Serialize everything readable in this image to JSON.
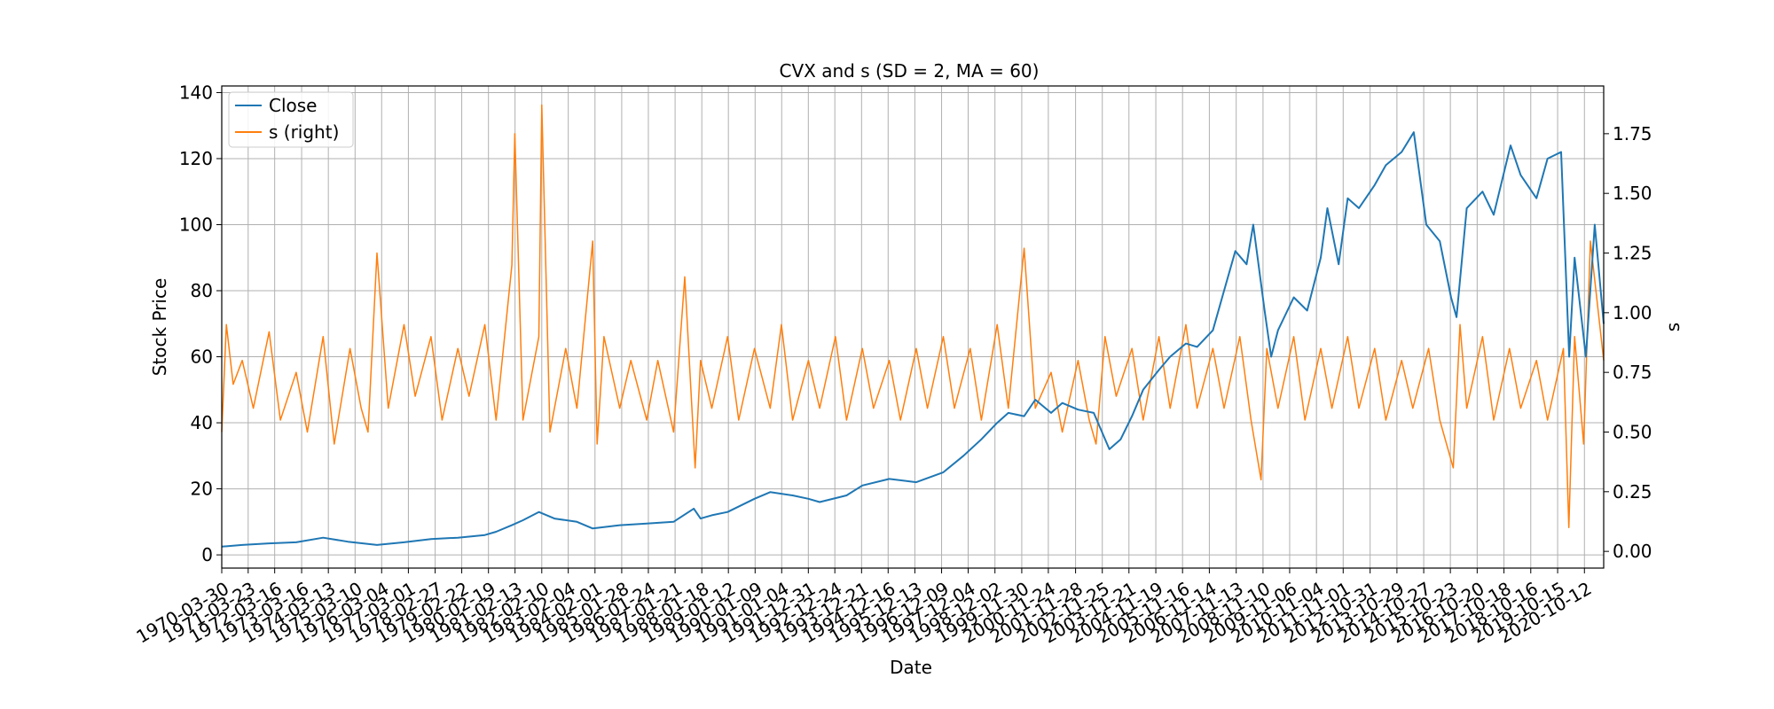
{
  "chart_data": {
    "type": "line",
    "title": "CVX and s (SD = 2, MA = 60)",
    "xlabel": "Date",
    "ylabel": "Stock Price",
    "ylabel_right": "s",
    "x_range": [
      "1970-03-30",
      "2021-06-30"
    ],
    "ylim": [
      -4,
      142
    ],
    "ylim_right": [
      -0.07,
      1.95
    ],
    "y_ticks": [
      "0",
      "20",
      "40",
      "60",
      "80",
      "100",
      "120",
      "140"
    ],
    "y_ticks_right": [
      "0.00",
      "0.25",
      "0.50",
      "0.75",
      "1.00",
      "1.25",
      "1.50",
      "1.75"
    ],
    "x_ticks": [
      "1970-03-30",
      "1971-03-23",
      "1972-03-16",
      "1973-03-16",
      "1974-03-13",
      "1975-03-10",
      "1976-03-04",
      "1977-03-01",
      "1978-02-27",
      "1979-02-22",
      "1980-02-19",
      "1981-02-13",
      "1982-02-10",
      "1983-02-04",
      "1984-02-01",
      "1985-01-28",
      "1986-01-24",
      "1987-01-21",
      "1988-01-18",
      "1989-01-12",
      "1990-01-09",
      "1991-01-04",
      "1991-12-31",
      "1992-12-24",
      "1993-12-21",
      "1994-12-16",
      "1995-12-13",
      "1996-12-09",
      "1997-12-04",
      "1998-12-02",
      "1999-11-30",
      "2000-11-24",
      "2001-11-28",
      "2002-11-25",
      "2003-11-21",
      "2004-11-19",
      "2005-11-16",
      "2006-11-14",
      "2007-11-13",
      "2008-11-10",
      "2009-11-06",
      "2010-11-04",
      "2011-11-01",
      "2012-10-31",
      "2013-10-29",
      "2014-10-27",
      "2015-10-23",
      "2016-10-20",
      "2017-10-18",
      "2018-10-16",
      "2019-10-15",
      "2020-10-12"
    ],
    "grid": true,
    "legend_position": "top-left",
    "legend": [
      "Close",
      "s (right)"
    ],
    "colors": {
      "close": "#1f77b4",
      "s": "#ff7f0e"
    },
    "series": [
      {
        "name": "Close",
        "axis": "left",
        "x": [
          "1970-03-30",
          "1971-01-01",
          "1972-01-01",
          "1973-01-01",
          "1974-01-01",
          "1974-12-01",
          "1976-01-01",
          "1977-01-01",
          "1978-01-01",
          "1979-01-01",
          "1980-01-01",
          "1980-06-01",
          "1981-01-01",
          "1981-06-01",
          "1982-01-01",
          "1982-08-01",
          "1983-06-01",
          "1984-01-01",
          "1985-01-01",
          "1986-01-01",
          "1987-01-01",
          "1987-10-01",
          "1988-01-01",
          "1988-06-01",
          "1989-01-01",
          "1990-01-01",
          "1990-08-01",
          "1991-06-01",
          "1992-01-01",
          "1992-06-01",
          "1993-06-01",
          "1994-01-01",
          "1995-01-01",
          "1996-01-01",
          "1997-01-01",
          "1997-10-01",
          "1998-06-01",
          "1999-01-01",
          "1999-06-01",
          "2000-01-01",
          "2000-06-01",
          "2001-01-01",
          "2001-06-01",
          "2002-01-01",
          "2002-08-01",
          "2003-03-01",
          "2003-08-01",
          "2004-01-01",
          "2004-06-01",
          "2005-01-01",
          "2005-06-01",
          "2006-01-01",
          "2006-06-01",
          "2007-01-01",
          "2007-06-01",
          "2007-11-01",
          "2008-04-01",
          "2008-07-01",
          "2008-12-01",
          "2009-03-01",
          "2009-06-01",
          "2010-01-01",
          "2010-07-01",
          "2011-01-01",
          "2011-04-01",
          "2011-09-01",
          "2012-01-01",
          "2012-06-01",
          "2013-01-01",
          "2013-06-01",
          "2014-01-01",
          "2014-06-15",
          "2014-12-01",
          "2015-06-01",
          "2015-11-01",
          "2016-01-15",
          "2016-06-01",
          "2017-01-01",
          "2017-06-01",
          "2018-01-15",
          "2018-06-01",
          "2019-01-01",
          "2019-06-01",
          "2019-12-01",
          "2020-03-20",
          "2020-06-01",
          "2020-11-01",
          "2021-03-01",
          "2021-06-30"
        ],
        "values": [
          2.5,
          3,
          3.5,
          3.8,
          5.2,
          4,
          3,
          3.8,
          4.8,
          5.2,
          6,
          7,
          9,
          10.5,
          13,
          11,
          10,
          8,
          9,
          9.5,
          10,
          14,
          11,
          12,
          13,
          17,
          19,
          18,
          17,
          16,
          18,
          21,
          23,
          22,
          25,
          30,
          35,
          40,
          43,
          42,
          47,
          43,
          46,
          44,
          43,
          32,
          35,
          42,
          50,
          56,
          60,
          64,
          63,
          68,
          80,
          92,
          88,
          100,
          74,
          60,
          68,
          78,
          74,
          90,
          105,
          88,
          108,
          105,
          112,
          118,
          122,
          128,
          100,
          95,
          78,
          72,
          105,
          110,
          103,
          124,
          115,
          108,
          120,
          122,
          60,
          90,
          60,
          100,
          70
        ],
        "color": "#1f77b4"
      },
      {
        "name": "s (right)",
        "axis": "right",
        "x": [
          "1970-03-30",
          "1970-06-01",
          "1970-09-01",
          "1971-01-01",
          "1971-06-01",
          "1972-01-01",
          "1972-06-01",
          "1973-01-01",
          "1973-06-01",
          "1974-01-01",
          "1974-06-01",
          "1975-01-01",
          "1975-06-01",
          "1975-09-01",
          "1976-01-01",
          "1976-06-01",
          "1977-01-01",
          "1977-06-01",
          "1978-01-01",
          "1978-06-01",
          "1979-01-01",
          "1979-06-01",
          "1980-01-01",
          "1980-06-01",
          "1981-01-01",
          "1981-02-10",
          "1981-06-01",
          "1982-01-01",
          "1982-02-10",
          "1982-06-01",
          "1983-01-01",
          "1983-06-01",
          "1984-01-01",
          "1984-03-01",
          "1984-06-01",
          "1985-01-01",
          "1985-06-01",
          "1986-01-01",
          "1986-06-01",
          "1987-01-01",
          "1987-06-01",
          "1987-10-20",
          "1988-01-01",
          "1988-06-01",
          "1989-01-01",
          "1989-06-01",
          "1990-01-01",
          "1990-08-01",
          "1991-01-01",
          "1991-06-01",
          "1992-01-01",
          "1992-06-01",
          "1993-01-01",
          "1993-06-01",
          "1994-01-01",
          "1994-06-01",
          "1995-01-01",
          "1995-06-01",
          "1996-01-01",
          "1996-06-01",
          "1997-01-01",
          "1997-06-01",
          "1998-01-01",
          "1998-06-01",
          "1999-01-01",
          "1999-06-01",
          "2000-01-01",
          "2000-06-01",
          "2001-01-01",
          "2001-06-01",
          "2002-01-01",
          "2002-06-01",
          "2002-09-01",
          "2003-01-01",
          "2003-06-01",
          "2004-01-01",
          "2004-06-01",
          "2005-01-01",
          "2005-06-01",
          "2006-01-01",
          "2006-06-01",
          "2007-01-01",
          "2007-06-01",
          "2008-01-01",
          "2008-06-01",
          "2008-10-15",
          "2009-01-01",
          "2009-06-01",
          "2010-01-01",
          "2010-06-01",
          "2011-01-01",
          "2011-06-01",
          "2012-01-01",
          "2012-06-01",
          "2013-01-01",
          "2013-06-01",
          "2014-01-01",
          "2014-06-01",
          "2015-01-01",
          "2015-06-01",
          "2015-12-01",
          "2016-03-01",
          "2016-06-01",
          "2017-01-01",
          "2017-06-01",
          "2018-01-01",
          "2018-06-01",
          "2019-01-01",
          "2019-06-01",
          "2020-01-01",
          "2020-03-15",
          "2020-06-01",
          "2020-10-01",
          "2021-01-01",
          "2021-06-30"
        ],
        "values": [
          0.5,
          0.95,
          0.7,
          0.8,
          0.6,
          0.92,
          0.55,
          0.75,
          0.5,
          0.9,
          0.45,
          0.85,
          0.6,
          0.5,
          1.25,
          0.6,
          0.95,
          0.65,
          0.9,
          0.55,
          0.85,
          0.65,
          0.95,
          0.55,
          1.2,
          1.75,
          0.55,
          0.9,
          1.87,
          0.5,
          0.85,
          0.6,
          1.3,
          0.45,
          0.9,
          0.6,
          0.8,
          0.55,
          0.8,
          0.5,
          1.15,
          0.35,
          0.8,
          0.6,
          0.9,
          0.55,
          0.85,
          0.6,
          0.95,
          0.55,
          0.8,
          0.6,
          0.9,
          0.55,
          0.85,
          0.6,
          0.8,
          0.55,
          0.85,
          0.6,
          0.9,
          0.6,
          0.85,
          0.55,
          0.95,
          0.6,
          1.27,
          0.6,
          0.75,
          0.5,
          0.8,
          0.55,
          0.45,
          0.9,
          0.65,
          0.85,
          0.55,
          0.9,
          0.6,
          0.95,
          0.6,
          0.85,
          0.6,
          0.9,
          0.55,
          0.3,
          0.85,
          0.6,
          0.9,
          0.55,
          0.85,
          0.6,
          0.9,
          0.6,
          0.85,
          0.55,
          0.8,
          0.6,
          0.85,
          0.55,
          0.35,
          0.95,
          0.6,
          0.9,
          0.55,
          0.85,
          0.6,
          0.8,
          0.55,
          0.85,
          0.1,
          0.9,
          0.45,
          1.3,
          0.8
        ],
        "color": "#ff7f0e"
      }
    ]
  }
}
